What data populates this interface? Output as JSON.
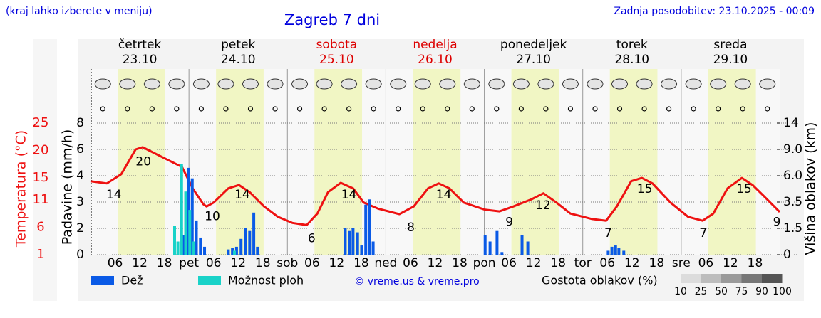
{
  "header": {
    "note": "(kraj lahko izberete v meniju)",
    "title": "Zagreb 7 dni",
    "updated": "Zadnja posodobitev: 23.10.2025 - 00:09"
  },
  "days": [
    {
      "name": "četrtek",
      "date": "23.10",
      "color": "#000000"
    },
    {
      "name": "petek",
      "date": "24.10",
      "color": "#000000"
    },
    {
      "name": "sobota",
      "date": "25.10",
      "color": "#dd0000"
    },
    {
      "name": "nedelja",
      "date": "26.10",
      "color": "#dd0000"
    },
    {
      "name": "ponedeljek",
      "date": "27.10",
      "color": "#000000"
    },
    {
      "name": "torek",
      "date": "28.10",
      "color": "#000000"
    },
    {
      "name": "sreda",
      "date": "29.10",
      "color": "#000000"
    }
  ],
  "chart_data": [
    {
      "type": "line",
      "ylabel": "Temperatura (°C)",
      "color": "#ee1111",
      "xlim": [
        0,
        168
      ],
      "ylim": [
        1,
        25
      ],
      "yticks": [
        1,
        6,
        11,
        15,
        20,
        25
      ],
      "x": [
        0,
        4,
        7.5,
        11,
        12.7,
        18,
        22.3,
        24.9,
        27.5,
        28.3,
        30,
        33.6,
        36.2,
        38.8,
        42.3,
        45.7,
        49.2,
        52.7,
        55.3,
        57.9,
        61,
        64,
        66.6,
        70.1,
        75.3,
        78.8,
        82.3,
        84.9,
        87.5,
        91,
        96.2,
        99.7,
        103.1,
        107.5,
        110.4,
        113.6,
        117,
        122.3,
        125.7,
        128.3,
        131.8,
        134.4,
        137,
        141.4,
        145.7,
        149.2,
        151.8,
        155.3,
        158.8,
        161.4,
        164,
        168
      ],
      "values": [
        14.4,
        14.0,
        15.7,
        20.2,
        20.6,
        18.6,
        17.0,
        13.1,
        10.2,
        9.8,
        10.5,
        13.1,
        13.7,
        12.4,
        9.8,
        7.9,
        6.8,
        6.4,
        8.5,
        12.4,
        14.1,
        13.1,
        10.5,
        9.4,
        8.4,
        9.8,
        13.1,
        14.0,
        13.1,
        10.5,
        9.2,
        8.9,
        9.8,
        11.1,
        12.2,
        10.5,
        8.5,
        7.5,
        7.2,
        9.8,
        14.4,
        15.0,
        14.0,
        10.5,
        7.9,
        7.2,
        8.5,
        13.1,
        15.0,
        13.7,
        11.8,
        8.8
      ],
      "point_labels": {
        "x": [
          5.7,
          12.9,
          29.7,
          37,
          53.9,
          63,
          78.1,
          86.1,
          102.1,
          110.3,
          126.2,
          135.1,
          149.4,
          159.3,
          168
        ],
        "values": [
          14,
          20,
          10,
          14,
          6,
          14,
          8,
          14,
          9,
          12,
          7,
          15,
          7,
          15,
          9
        ]
      }
    },
    {
      "type": "bar",
      "ylabel": "Padavine (mm/h)",
      "xlim": [
        0,
        168
      ],
      "ylim": [
        0,
        8
      ],
      "yticks": [
        0,
        2,
        3,
        4,
        6,
        8
      ],
      "xticks": [
        {
          "value": 6,
          "label": "06"
        },
        {
          "value": 12,
          "label": "12"
        },
        {
          "value": 18,
          "label": "18"
        },
        {
          "value": 24,
          "label": "pet"
        },
        {
          "value": 30,
          "label": "06"
        },
        {
          "value": 36,
          "label": "12"
        },
        {
          "value": 42,
          "label": "18"
        },
        {
          "value": 48,
          "label": "sob"
        },
        {
          "value": 54,
          "label": "06"
        },
        {
          "value": 60,
          "label": "12"
        },
        {
          "value": 66,
          "label": "18"
        },
        {
          "value": 72,
          "label": "ned"
        },
        {
          "value": 78,
          "label": "06"
        },
        {
          "value": 84,
          "label": "12"
        },
        {
          "value": 90,
          "label": "18"
        },
        {
          "value": 96,
          "label": "pon"
        },
        {
          "value": 102,
          "label": "06"
        },
        {
          "value": 108,
          "label": "12"
        },
        {
          "value": 114,
          "label": "18"
        },
        {
          "value": 120,
          "label": "tor"
        },
        {
          "value": 126,
          "label": "06"
        },
        {
          "value": 132,
          "label": "12"
        },
        {
          "value": 138,
          "label": "18"
        },
        {
          "value": 144,
          "label": "sre"
        },
        {
          "value": 150,
          "label": "06"
        },
        {
          "value": 156,
          "label": "12"
        },
        {
          "value": 162,
          "label": "18"
        }
      ],
      "y2label": "Višina oblakov (km)",
      "y2lim": [
        0,
        14
      ],
      "y2ticks": [
        0,
        1.5,
        3.5,
        {
          "value": 6,
          "label": "6.0"
        },
        {
          "value": 9,
          "label": "9.0"
        },
        14
      ],
      "daylight": [
        [
          6.6,
          18.2
        ],
        [
          30.6,
          42.2
        ],
        [
          54.6,
          66.2
        ],
        [
          78.6,
          90.2
        ],
        [
          102.6,
          114.2
        ],
        [
          126.6,
          138.2
        ],
        [
          150.6,
          162.2
        ]
      ],
      "series": [
        {
          "name": "Dež",
          "color": "#0a5ae6",
          "x": [
            22.8,
            23.8,
            24.8,
            25.8,
            26.8,
            27.8,
            33.6,
            34.6,
            35.6,
            36.7,
            37.7,
            38.8,
            39.8,
            40.7,
            62.1,
            63.1,
            64.0,
            65.1,
            66.1,
            67.1,
            68.0,
            68.9,
            96.2,
            97.4,
            99.1,
            100.3,
            105.2,
            106.6,
            126.2,
            127.1,
            128,
            128.8,
            130
          ],
          "values": [
            1.5,
            4.6,
            3.9,
            2.3,
            1.3,
            0.6,
            0.4,
            0.5,
            0.6,
            1.2,
            2.0,
            1.8,
            2.6,
            0.6,
            2.0,
            1.8,
            2.0,
            1.7,
            0.7,
            2.9,
            3.1,
            1.0,
            1.5,
            1.0,
            1.8,
            0.2,
            1.5,
            1.0,
            0.3,
            0.6,
            0.7,
            0.5,
            0.3
          ]
        },
        {
          "name": "Možnost ploh",
          "color": "#19d2c8",
          "x": [
            20.5,
            21.3,
            22.2,
            23.2,
            24.2,
            25.2,
            35.1
          ],
          "values": [
            2.1,
            1.0,
            4.9,
            3.4,
            2.7,
            1.0,
            0.3
          ]
        }
      ]
    }
  ],
  "legend": {
    "credit": "© vreme.us & vreme.pro",
    "cloud_title": "Gostota oblakov (%)",
    "cloud_scale": [
      10,
      25,
      50,
      75,
      90,
      100
    ]
  }
}
